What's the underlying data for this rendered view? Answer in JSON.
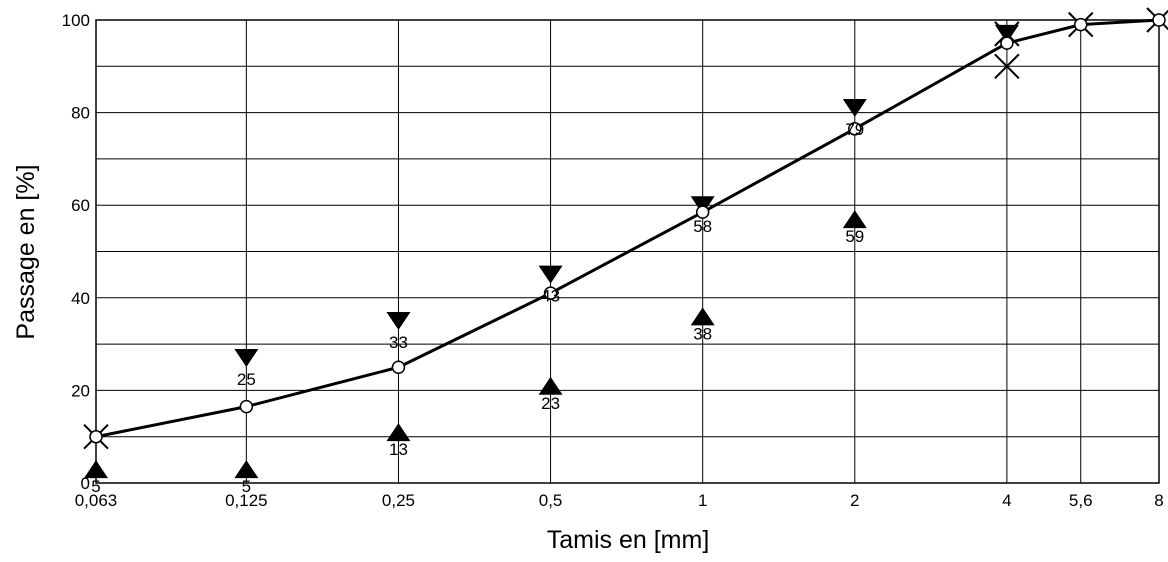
{
  "chart_data": {
    "type": "line",
    "xlabel": "Tamis en [mm]",
    "ylabel": "Passage en [%]",
    "ylim": [
      0,
      100
    ],
    "y_ticks": [
      "0",
      "20",
      "40",
      "60",
      "80",
      "100"
    ],
    "y_minor_step": 10,
    "categories": [
      "0,063",
      "0,125",
      "0,25",
      "0,5",
      "1",
      "2",
      "4",
      "5,6",
      "8"
    ],
    "x_values": [
      0.063,
      0.125,
      0.25,
      0.5,
      1,
      2,
      4,
      5.6,
      8
    ],
    "x_scale": "log",
    "grid": true,
    "series": [
      {
        "role": "curve",
        "x": [
          0.063,
          0.125,
          0.25,
          0.5,
          1,
          2,
          4,
          5.6,
          8
        ],
        "values": [
          10,
          16.5,
          25,
          41,
          58.5,
          76.5,
          95,
          99,
          100
        ]
      },
      {
        "role": "upper-limit",
        "marker": "triangle-down",
        "x": [
          0.125,
          0.25,
          0.5,
          1,
          2,
          4
        ],
        "values": [
          27,
          35,
          45,
          60,
          81,
          97
        ],
        "labels": [
          "25",
          "33",
          "43",
          "58",
          "79",
          ""
        ]
      },
      {
        "role": "lower-limit",
        "marker": "triangle-up",
        "x": [
          0.063,
          0.125,
          0.25,
          0.5,
          1,
          2
        ],
        "values": [
          3,
          3,
          11,
          21,
          36,
          57
        ],
        "labels": [
          "5",
          "5",
          "13",
          "23",
          "38",
          "59"
        ]
      },
      {
        "role": "x-markers",
        "marker": "x-cross",
        "x": [
          0.063,
          4,
          4,
          5.6,
          8
        ],
        "values": [
          10,
          97,
          90,
          99,
          100
        ]
      }
    ]
  }
}
